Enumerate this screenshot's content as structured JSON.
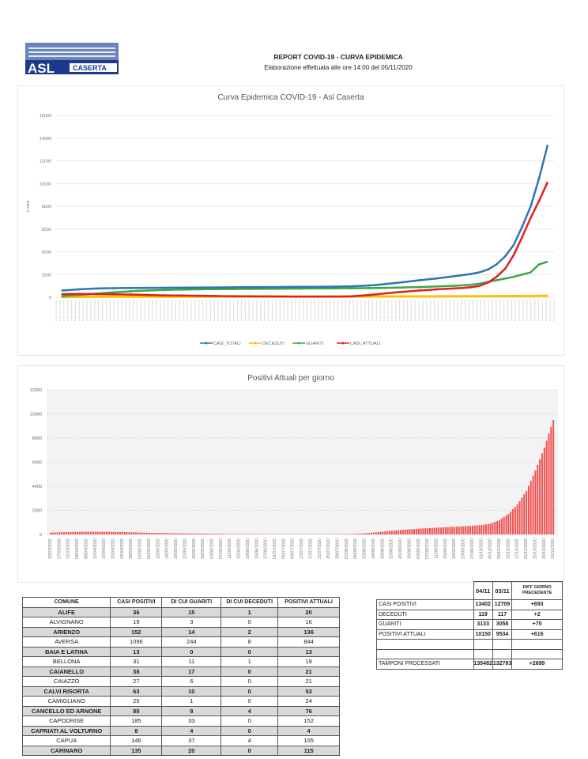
{
  "header": {
    "logo_text": "ASL CASERTA",
    "title": "REPORT COVID-19 - CURVA EPIDEMICA",
    "subtitle": "Elaborazione effettuata alle ore 14:00 del 05/11/2020"
  },
  "colors": {
    "casi_totali": "#2e75b6",
    "deceduti": "#ffc000",
    "guariti": "#3aa845",
    "casi_attuali": "#e02020",
    "bars": "#f05050"
  },
  "chart_data": [
    {
      "type": "line",
      "title": "Curva Epidemica COVID-19 - Asl Caserta",
      "ylabel": "n casi",
      "ylim": [
        0,
        16000
      ],
      "yticks": [
        0,
        2000,
        4000,
        6000,
        8000,
        10000,
        12000,
        14000,
        16000
      ],
      "grid": true,
      "legend_position": "bottom",
      "series": [
        {
          "name": "CASI_TOTALI",
          "values": [
            600,
            650,
            700,
            740,
            770,
            790,
            800,
            810,
            815,
            820,
            825,
            830,
            835,
            840,
            845,
            850,
            855,
            860,
            865,
            870,
            875,
            880,
            885,
            890,
            895,
            900,
            905,
            910,
            915,
            920,
            925,
            930,
            940,
            950,
            970,
            1000,
            1040,
            1100,
            1170,
            1250,
            1330,
            1420,
            1500,
            1580,
            1660,
            1750,
            1850,
            1950,
            2050,
            2200,
            2450,
            2900,
            3600,
            4600,
            6200,
            8000,
            10500,
            13402
          ]
        },
        {
          "name": "DECEDUTI",
          "values": [
            20,
            30,
            40,
            45,
            50,
            52,
            54,
            55,
            56,
            56,
            57,
            57,
            58,
            58,
            58,
            59,
            59,
            59,
            60,
            60,
            60,
            60,
            60,
            61,
            61,
            61,
            61,
            62,
            62,
            62,
            62,
            63,
            63,
            64,
            65,
            66,
            67,
            68,
            69,
            70,
            72,
            74,
            76,
            78,
            80,
            82,
            84,
            86,
            88,
            90,
            93,
            96,
            100,
            104,
            108,
            112,
            117,
            119
          ]
        },
        {
          "name": "GUARITI",
          "values": [
            100,
            150,
            200,
            260,
            320,
            380,
            430,
            480,
            520,
            560,
            590,
            620,
            640,
            660,
            680,
            690,
            700,
            710,
            715,
            720,
            725,
            730,
            735,
            740,
            745,
            750,
            755,
            760,
            765,
            770,
            775,
            780,
            785,
            790,
            795,
            800,
            810,
            820,
            830,
            845,
            860,
            880,
            900,
            920,
            950,
            980,
            1010,
            1050,
            1100,
            1200,
            1350,
            1500,
            1650,
            1800,
            2000,
            2200,
            2900,
            3133
          ]
        },
        {
          "name": "CASI_ATTUALI",
          "values": [
            280,
            300,
            300,
            290,
            280,
            270,
            260,
            250,
            240,
            220,
            200,
            180,
            170,
            160,
            150,
            140,
            130,
            120,
            110,
            100,
            95,
            90,
            85,
            80,
            75,
            70,
            70,
            65,
            65,
            60,
            60,
            60,
            65,
            70,
            90,
            140,
            200,
            270,
            350,
            420,
            480,
            540,
            600,
            650,
            700,
            740,
            780,
            820,
            880,
            1000,
            1300,
            1800,
            2500,
            3700,
            5300,
            7000,
            8500,
            10150
          ]
        }
      ]
    },
    {
      "type": "bar",
      "title": "Positivi Attuali per giorno",
      "ylim": [
        0,
        12000
      ],
      "yticks": [
        0,
        2000,
        4000,
        6000,
        8000,
        10000,
        12000
      ],
      "grid": true,
      "categories": [
        "23/03/2020",
        "27/03/2020",
        "31/03/2020",
        "04/04/2020",
        "08/04/2020",
        "12/04/2020",
        "16/04/2020",
        "20/04/2020",
        "24/04/2020",
        "28/04/2020",
        "02/05/2020",
        "06/05/2020",
        "10/05/2020",
        "14/05/2020",
        "18/05/2020",
        "22/05/2020",
        "26/05/2020",
        "30/05/2020",
        "03/06/2020",
        "07/06/2020",
        "11/06/2020",
        "15/06/2020",
        "19/06/2020",
        "23/06/2020",
        "27/06/2020",
        "01/07/2020",
        "05/07/2020",
        "09/07/2020",
        "13/07/2020",
        "17/07/2020",
        "21/07/2020",
        "25/07/2020",
        "29/07/2020",
        "02/08/2020",
        "06/08/2020",
        "10/08/2020",
        "14/08/2020",
        "18/08/2020",
        "22/08/2020",
        "26/08/2020",
        "30/08/2020",
        "03/09/2020",
        "07/09/2020",
        "11/09/2020",
        "15/09/2020",
        "19/09/2020",
        "23/09/2020",
        "27/09/2020",
        "01/10/2020",
        "05/10/2020",
        "09/10/2020",
        "13/10/2020",
        "17/10/2020",
        "21/10/2020",
        "25/10/2020",
        "29/10/2020",
        "02/11/2020"
      ],
      "values": [
        150,
        180,
        200,
        210,
        220,
        220,
        215,
        210,
        200,
        180,
        160,
        140,
        120,
        110,
        100,
        90,
        80,
        70,
        60,
        50,
        45,
        40,
        40,
        35,
        35,
        30,
        30,
        30,
        30,
        30,
        30,
        30,
        35,
        40,
        60,
        100,
        160,
        230,
        300,
        370,
        430,
        480,
        520,
        560,
        600,
        640,
        680,
        720,
        780,
        900,
        1200,
        1700,
        2500,
        3600,
        5300,
        7200,
        9500
      ]
    }
  ],
  "comuni_table": {
    "headers": [
      "COMUNE",
      "CASI POSITIVI",
      "DI CUI GUARITI",
      "DI CUI DECEDUTI",
      "POSITIVI ATTUALI"
    ],
    "rows": [
      [
        "ALIFE",
        "36",
        "15",
        "1",
        "20"
      ],
      [
        "ALVIGNANO",
        "19",
        "3",
        "0",
        "16"
      ],
      [
        "ARIENZO",
        "152",
        "14",
        "2",
        "136"
      ],
      [
        "AVERSA",
        "1096",
        "244",
        "8",
        "844"
      ],
      [
        "BAIA E LATINA",
        "13",
        "0",
        "0",
        "13"
      ],
      [
        "BELLONA",
        "31",
        "11",
        "1",
        "19"
      ],
      [
        "CAIANELLO",
        "38",
        "17",
        "0",
        "21"
      ],
      [
        "CAIAZZO",
        "27",
        "6",
        "0",
        "21"
      ],
      [
        "CALVI RISORTA",
        "63",
        "10",
        "0",
        "53"
      ],
      [
        "CAMIGLIANO",
        "25",
        "1",
        "0",
        "24"
      ],
      [
        "CANCELLO ED ARNONE",
        "88",
        "8",
        "4",
        "76"
      ],
      [
        "CAPODRISE",
        "185",
        "33",
        "0",
        "152"
      ],
      [
        "CAPRIATI AL VOLTURNO",
        "8",
        "4",
        "0",
        "4"
      ],
      [
        "CAPUA",
        "146",
        "37",
        "4",
        "105"
      ],
      [
        "CARINARO",
        "135",
        "20",
        "0",
        "115"
      ]
    ]
  },
  "summary_table": {
    "headers": [
      "04/11",
      "03/11",
      "DIFF GIORNO PRECEDENTE"
    ],
    "rows": [
      [
        "CASI POSITIVI",
        "13402",
        "12709",
        "+693"
      ],
      [
        "DECEDUTI",
        "119",
        "117",
        "+2"
      ],
      [
        "GUARITI",
        "3133",
        "3058",
        "+75"
      ],
      [
        "POSITIVI ATTUALI",
        "10150",
        "9534",
        "+616"
      ],
      [
        "",
        "",
        "",
        ""
      ],
      [
        "",
        "",
        "",
        ""
      ],
      [
        "TAMPONI PROCESSATI",
        "135482",
        "132783",
        "+2699"
      ]
    ]
  }
}
